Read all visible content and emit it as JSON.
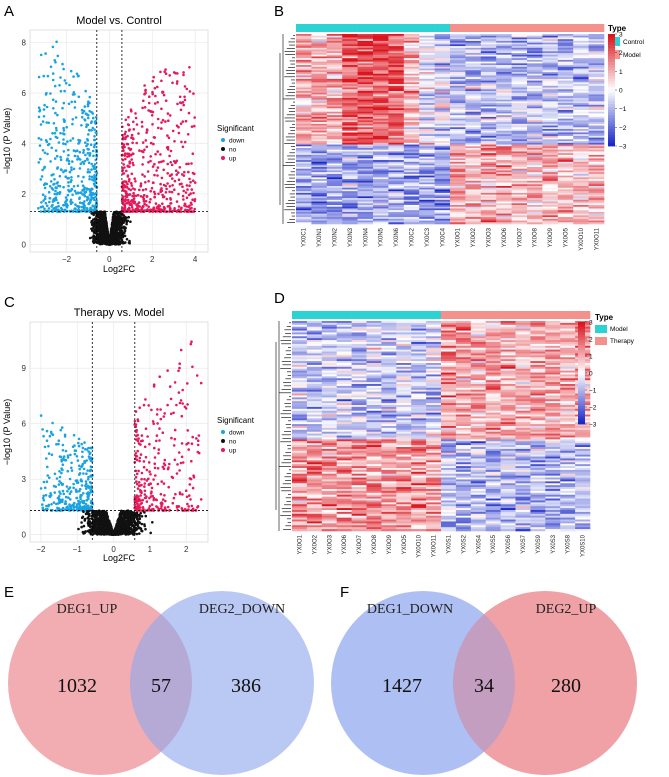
{
  "panel_labels": {
    "A": "A",
    "B": "B",
    "C": "C",
    "D": "D",
    "E": "E",
    "F": "F"
  },
  "colors": {
    "down": "#1aa3e0",
    "no": "#111111",
    "up": "#e6195a",
    "control": "#2dd3d3",
    "model": "#f4918a",
    "therapy": "#f4918a",
    "venn_pink": "#ec8e93",
    "venn_blue": "#8fa6ee"
  },
  "chart_data": [
    {
      "id": "A",
      "type": "scatter",
      "title": "Model vs. Control",
      "xlabel": "Log2FC",
      "ylabel": "−log10 (P Value)",
      "xlim": [
        -3.7,
        4.6
      ],
      "ylim": [
        -0.3,
        8.5
      ],
      "xticks": [
        -2,
        0,
        2,
        4
      ],
      "xtick_labels": [
        "−2",
        "0",
        "2",
        "4"
      ],
      "yticks": [
        0,
        2,
        4,
        6,
        8
      ],
      "ytick_labels": [
        "0",
        "2",
        "4",
        "6",
        "8"
      ],
      "thresholds": {
        "x": [
          -0.585,
          0.585
        ],
        "y": 1.3
      },
      "legend": {
        "title": "Significant",
        "entries": [
          "down",
          "no",
          "up"
        ]
      },
      "series": [
        {
          "name": "down",
          "n": 520,
          "x_range": [
            -3.3,
            -0.6
          ],
          "y_range": [
            1.3,
            8.1
          ]
        },
        {
          "name": "no",
          "n": 1300,
          "x_range": [
            -1.0,
            1.0
          ],
          "y_range": [
            0,
            1.3
          ]
        },
        {
          "name": "up",
          "n": 560,
          "x_range": [
            0.6,
            4.0
          ],
          "y_range": [
            1.3,
            7.1
          ]
        }
      ]
    },
    {
      "id": "C",
      "type": "scatter",
      "title": "Therapy vs. Model",
      "xlabel": "Log2FC",
      "ylabel": "−log10 (P Value)",
      "xlim": [
        -2.3,
        2.6
      ],
      "ylim": [
        -0.4,
        11.5
      ],
      "xticks": [
        -2,
        -1,
        0,
        1,
        2
      ],
      "xtick_labels": [
        "−2",
        "−1",
        "0",
        "1",
        "2"
      ],
      "yticks": [
        0,
        3,
        6,
        9
      ],
      "ytick_labels": [
        "0",
        "3",
        "6",
        "9"
      ],
      "thresholds": {
        "x": [
          -0.585,
          0.585
        ],
        "y": 1.3
      },
      "legend": {
        "title": "Significant",
        "entries": [
          "down",
          "no",
          "up"
        ]
      },
      "series": [
        {
          "name": "down",
          "n": 330,
          "x_range": [
            -2.0,
            -0.6
          ],
          "y_range": [
            1.3,
            7.0
          ]
        },
        {
          "name": "no",
          "n": 1200,
          "x_range": [
            -1.2,
            1.2
          ],
          "y_range": [
            0,
            1.3
          ]
        },
        {
          "name": "up",
          "n": 300,
          "x_range": [
            0.6,
            2.4
          ],
          "y_range": [
            1.3,
            11.0
          ]
        }
      ]
    },
    {
      "id": "B",
      "type": "heatmap",
      "samples": [
        "YX0C1",
        "YX0N1",
        "YX0N2",
        "YX0N3",
        "YX0N4",
        "YX0N5",
        "YX0N6",
        "YX0C2",
        "YX0C3",
        "YX0C4",
        "YX0O1",
        "YX0O2",
        "YX0O3",
        "YX0O6",
        "YX0O7",
        "YX0O8",
        "YX0O9",
        "YX0O5",
        "YX0O10",
        "YX0O11"
      ],
      "groups": [
        "Control",
        "Control",
        "Control",
        "Control",
        "Control",
        "Control",
        "Control",
        "Control",
        "Control",
        "Control",
        "Model",
        "Model",
        "Model",
        "Model",
        "Model",
        "Model",
        "Model",
        "Model",
        "Model",
        "Model"
      ],
      "legend": {
        "title": "Type",
        "entries": [
          "Control",
          "Model"
        ]
      },
      "color_range": [
        -3,
        3
      ],
      "scale_ticks": [
        "3",
        "2",
        "1",
        "0",
        "−1",
        "−2",
        "−3"
      ],
      "rows": 110
    },
    {
      "id": "D",
      "type": "heatmap",
      "samples": [
        "YX0O1",
        "YX0O2",
        "YX0O3",
        "YX0O6",
        "YX0O7",
        "YX0O8",
        "YX0O9",
        "YX0O5",
        "YX0O10",
        "YX0O11",
        "YX0S1",
        "YX0S2",
        "YX0S4",
        "YX0S5",
        "YX0S6",
        "YX0S7",
        "YX0S9",
        "YX0S3",
        "YX0S8",
        "YX0S10"
      ],
      "groups": [
        "Model",
        "Model",
        "Model",
        "Model",
        "Model",
        "Model",
        "Model",
        "Model",
        "Model",
        "Model",
        "Therapy",
        "Therapy",
        "Therapy",
        "Therapy",
        "Therapy",
        "Therapy",
        "Therapy",
        "Therapy",
        "Therapy",
        "Therapy"
      ],
      "legend": {
        "title": "Type",
        "entries": [
          "Model",
          "Therapy"
        ]
      },
      "color_range": [
        -3,
        3
      ],
      "scale_ticks": [
        "3",
        "2",
        "1",
        "0",
        "−1",
        "−2",
        "−3"
      ],
      "rows": 110
    }
  ],
  "venn": [
    {
      "id": "E",
      "left_label": "DEG1_UP",
      "right_label": "DEG2_DOWN",
      "left_only": "1032",
      "overlap": "57",
      "right_only": "386"
    },
    {
      "id": "F",
      "left_label": "DEG1_DOWN",
      "right_label": "DEG2_UP",
      "left_only": "1427",
      "overlap": "34",
      "right_only": "280"
    }
  ]
}
